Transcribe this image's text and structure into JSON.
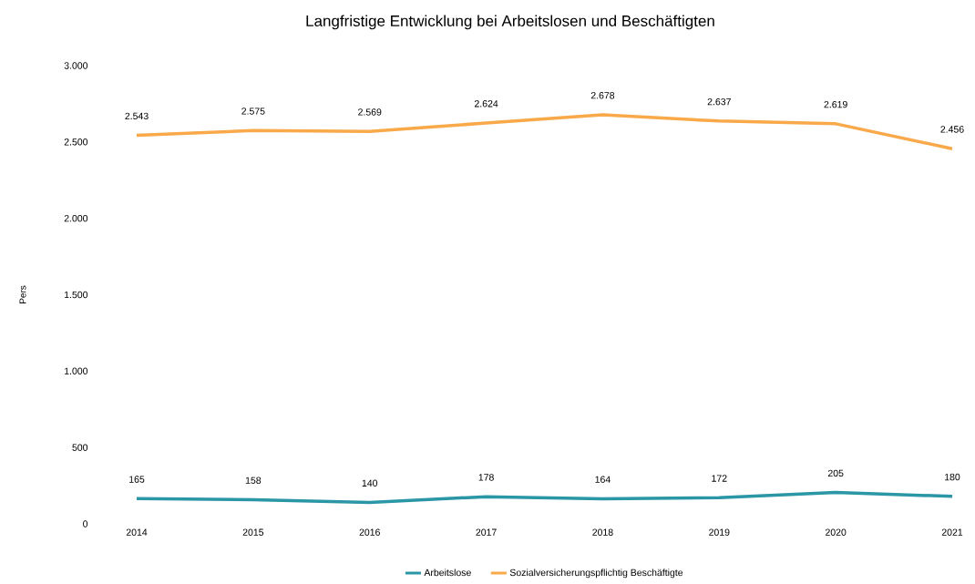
{
  "chart_data": {
    "type": "line",
    "title": "Langfristige Entwicklung bei Arbeitslosen und Beschäftigten",
    "ylabel": "Pers",
    "categories": [
      "2014",
      "2015",
      "2016",
      "2017",
      "2018",
      "2019",
      "2020",
      "2021"
    ],
    "series": [
      {
        "name": "Arbeitslose",
        "color": "#2b96a6",
        "values": [
          165,
          158,
          140,
          178,
          164,
          172,
          205,
          180
        ],
        "value_labels": [
          "165",
          "158",
          "140",
          "178",
          "164",
          "172",
          "205",
          "180"
        ]
      },
      {
        "name": "Sozialversicherungspflichtig Beschäftigte",
        "color": "#f9a94a",
        "values": [
          2543,
          2575,
          2569,
          2624,
          2678,
          2637,
          2619,
          2456
        ],
        "value_labels": [
          "2.543",
          "2.575",
          "2.569",
          "2.624",
          "2.678",
          "2.637",
          "2.619",
          "2.456"
        ]
      }
    ],
    "ylim": [
      0,
      3000
    ],
    "yticks": [
      {
        "value": 0,
        "label": "0"
      },
      {
        "value": 500,
        "label": "500"
      },
      {
        "value": 1000,
        "label": "1.000"
      },
      {
        "value": 1500,
        "label": "1.500"
      },
      {
        "value": 2000,
        "label": "2.000"
      },
      {
        "value": 2500,
        "label": "2.500"
      },
      {
        "value": 3000,
        "label": "3.000"
      }
    ],
    "legend": "bottom",
    "marker": "none",
    "line_style": "solid"
  }
}
